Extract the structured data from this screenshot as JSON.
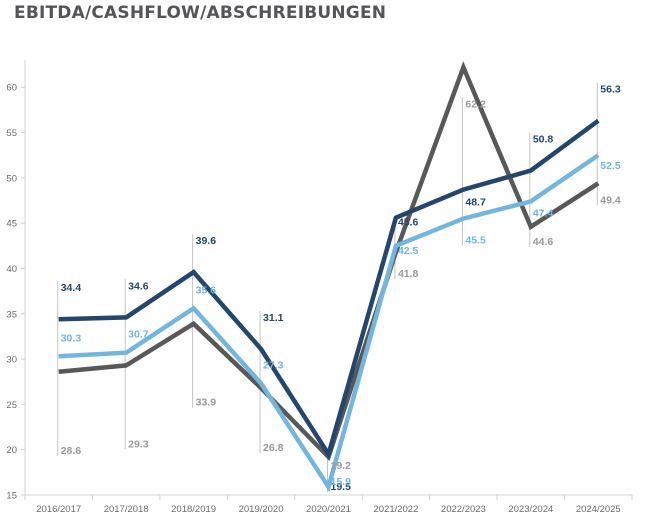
{
  "chart_data": {
    "type": "line",
    "title": "EBITDA/CASHFLOW/ABSCHREIBUNGEN",
    "xlabel": "",
    "ylabel": "",
    "ylim": [
      15,
      63
    ],
    "yticks": [
      15,
      20,
      25,
      30,
      35,
      40,
      45,
      50,
      55,
      60
    ],
    "categories": [
      "2016/2017",
      "2017/2018",
      "2018/2019",
      "2019/2020",
      "2020/2021",
      "2021/2022",
      "2022/2023",
      "2023/2024",
      "2024/2025"
    ],
    "series": [
      {
        "name": "Series A (dark blue)",
        "color": "#24456c",
        "values": [
          34.4,
          34.6,
          39.6,
          31.1,
          19.5,
          45.6,
          48.7,
          50.8,
          56.3
        ]
      },
      {
        "name": "Series B (light blue)",
        "color": "#72b6e0",
        "values": [
          30.3,
          30.7,
          35.6,
          27.3,
          15.9,
          42.5,
          45.5,
          47.4,
          52.5
        ]
      },
      {
        "name": "Series C (gray)",
        "color": "#585858",
        "label_color": "#9a9a9a",
        "values": [
          28.6,
          29.3,
          33.9,
          26.8,
          19.2,
          41.8,
          62.2,
          44.6,
          49.4
        ]
      }
    ],
    "grid": false,
    "legend": "none"
  }
}
